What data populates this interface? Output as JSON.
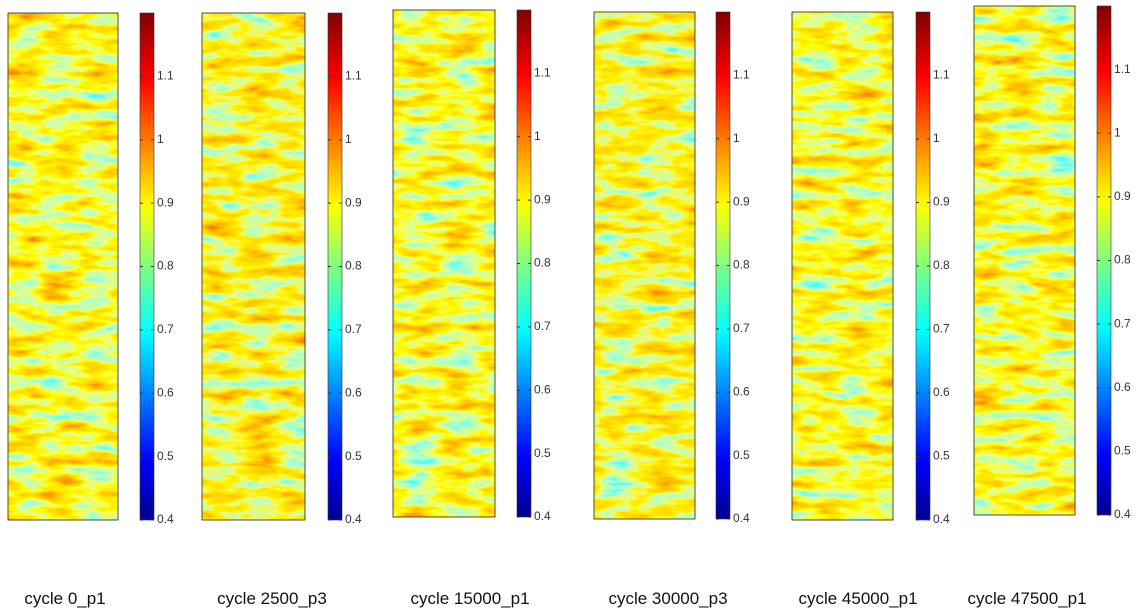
{
  "chart_data": [
    {
      "type": "heatmap",
      "xlabel": "cycle 0_p1",
      "ylim": [
        0.4,
        1.2
      ],
      "yticks": [
        0.4,
        0.5,
        0.6,
        0.7,
        0.8,
        0.9,
        1,
        1.1
      ]
    },
    {
      "type": "heatmap",
      "xlabel": "cycle 2500_p3",
      "ylim": [
        0.4,
        1.2
      ],
      "yticks": [
        0.4,
        0.5,
        0.6,
        0.7,
        0.8,
        0.9,
        1,
        1.1
      ]
    },
    {
      "type": "heatmap",
      "xlabel": "cycle 15000_p1",
      "ylim": [
        0.4,
        1.2
      ],
      "yticks": [
        0.4,
        0.5,
        0.6,
        0.7,
        0.8,
        0.9,
        1,
        1.1
      ]
    },
    {
      "type": "heatmap",
      "xlabel": "cycle 30000_p3",
      "ylim": [
        0.4,
        1.2
      ],
      "yticks": [
        0.4,
        0.5,
        0.6,
        0.7,
        0.8,
        0.9,
        1,
        1.1
      ]
    },
    {
      "type": "heatmap",
      "xlabel": "cycle 45000_p1",
      "ylim": [
        0.4,
        1.2
      ],
      "yticks": [
        0.4,
        0.5,
        0.6,
        0.7,
        0.8,
        0.9,
        1,
        1.1
      ]
    },
    {
      "type": "heatmap",
      "xlabel": "cycle 47500_p1",
      "ylim": [
        0.4,
        1.2
      ],
      "yticks": [
        0.4,
        0.5,
        0.6,
        0.7,
        0.8,
        0.9,
        1,
        1.1
      ]
    }
  ]
}
